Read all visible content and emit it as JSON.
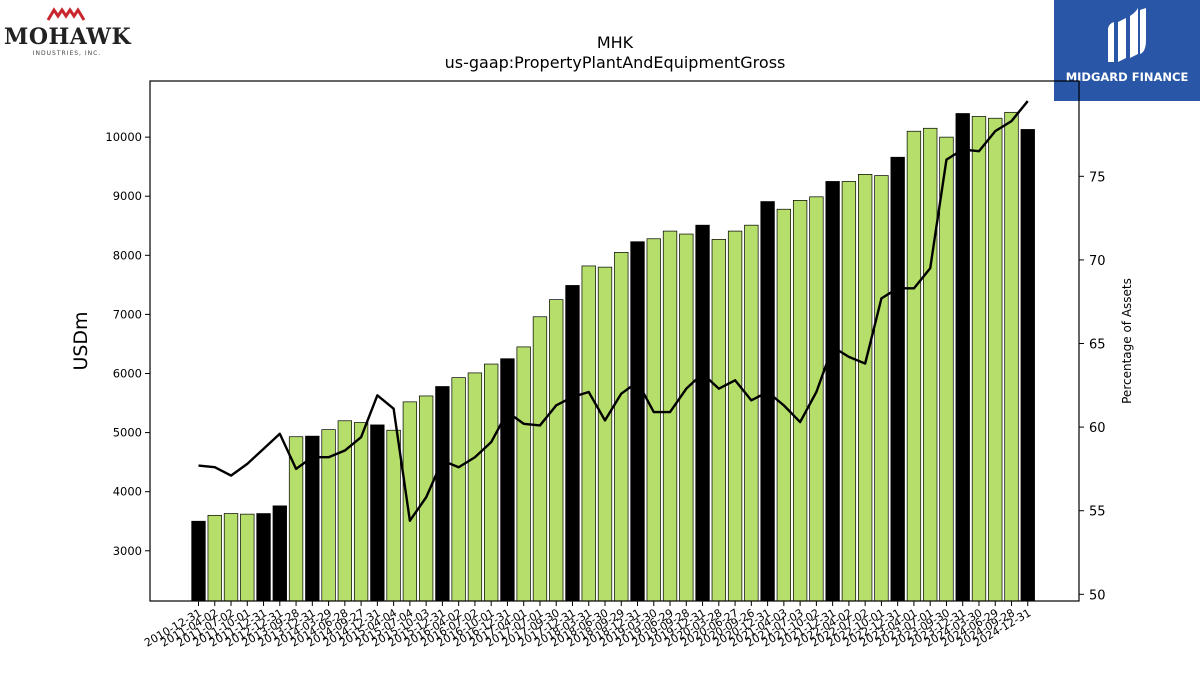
{
  "branding": {
    "left_logo_name": "MOHAWK",
    "left_logo_sub": "INDUSTRIES, INC.",
    "right_logo_name": "MIDGARD FINANCE",
    "accent_color": "#2a56a8"
  },
  "chart_data": {
    "type": "bar",
    "title": "MHK",
    "subtitle": "us-gaap:PropertyPlantAndEquipmentGross",
    "ylabel": "USDm",
    "y2label": "Percentage of Assets",
    "ylim": [
      2150,
      10950
    ],
    "y2lim": [
      49.6,
      80.7
    ],
    "yticks": [
      3000,
      4000,
      5000,
      6000,
      7000,
      8000,
      9000,
      10000
    ],
    "y2ticks": [
      50,
      55,
      60,
      65,
      70,
      75
    ],
    "bar_colors": {
      "annual": "#000000",
      "quarterly": "#b5de6a"
    },
    "line_color": "#000000",
    "categories": [
      "2010-12-31",
      "2011-04-02",
      "2011-07-02",
      "2011-10-01",
      "2011-12-31",
      "2012-12-31",
      "2013-09-28",
      "2013-12-31",
      "2014-03-29",
      "2014-06-28",
      "2014-09-27",
      "2014-12-31",
      "2015-04-04",
      "2015-07-04",
      "2015-10-03",
      "2015-12-31",
      "2016-04-02",
      "2016-07-02",
      "2016-10-01",
      "2016-12-31",
      "2017-04-01",
      "2017-07-01",
      "2017-09-30",
      "2017-12-31",
      "2018-03-31",
      "2018-06-30",
      "2018-09-29",
      "2018-12-31",
      "2019-03-30",
      "2019-06-29",
      "2019-09-28",
      "2019-12-31",
      "2020-03-28",
      "2020-06-27",
      "2020-09-26",
      "2020-12-31",
      "2021-04-03",
      "2021-07-03",
      "2021-10-02",
      "2021-12-31",
      "2022-04-02",
      "2022-07-02",
      "2022-10-01",
      "2022-12-31",
      "2023-04-01",
      "2023-07-01",
      "2023-09-30",
      "2023-12-31",
      "2024-03-30",
      "2024-06-29",
      "2024-09-28",
      "2024-12-31"
    ],
    "annual": [
      true,
      false,
      false,
      false,
      true,
      true,
      false,
      true,
      false,
      false,
      false,
      true,
      false,
      false,
      false,
      true,
      false,
      false,
      false,
      true,
      false,
      false,
      false,
      true,
      false,
      false,
      false,
      true,
      false,
      false,
      false,
      true,
      false,
      false,
      false,
      true,
      false,
      false,
      false,
      true,
      false,
      false,
      false,
      true,
      false,
      false,
      false,
      true,
      false,
      false,
      false,
      true
    ],
    "series": [
      {
        "name": "PropertyPlantAndEquipmentGross",
        "axis": "left",
        "values": [
          3500,
          3600,
          3630,
          3620,
          3630,
          3760,
          4930,
          4940,
          5050,
          5200,
          5170,
          5130,
          5040,
          5520,
          5620,
          5780,
          5930,
          6010,
          6160,
          6250,
          6450,
          6960,
          7250,
          7490,
          7820,
          7800,
          8050,
          8230,
          8280,
          8410,
          8360,
          8510,
          8270,
          8410,
          8510,
          8910,
          8780,
          8930,
          8990,
          9250,
          9250,
          9370,
          9350,
          9660,
          10100,
          10150,
          10000,
          10400,
          10350,
          10320,
          10420,
          10130
        ]
      },
      {
        "name": "Percentage of Assets",
        "axis": "right",
        "values": [
          57.7,
          57.6,
          57.1,
          57.8,
          58.7,
          59.6,
          57.5,
          58.2,
          58.2,
          58.6,
          59.4,
          61.9,
          61.1,
          54.4,
          55.8,
          58.0,
          57.6,
          58.2,
          59.1,
          60.9,
          60.2,
          60.1,
          61.3,
          61.8,
          62.1,
          60.4,
          62.0,
          62.7,
          60.9,
          60.9,
          62.3,
          63.2,
          62.3,
          62.8,
          61.6,
          62.1,
          61.3,
          60.3,
          62.1,
          64.8,
          64.2,
          63.8,
          67.7,
          68.3,
          68.3,
          69.5,
          76.0,
          76.6,
          76.5,
          77.7,
          78.3,
          79.5
        ]
      }
    ]
  }
}
